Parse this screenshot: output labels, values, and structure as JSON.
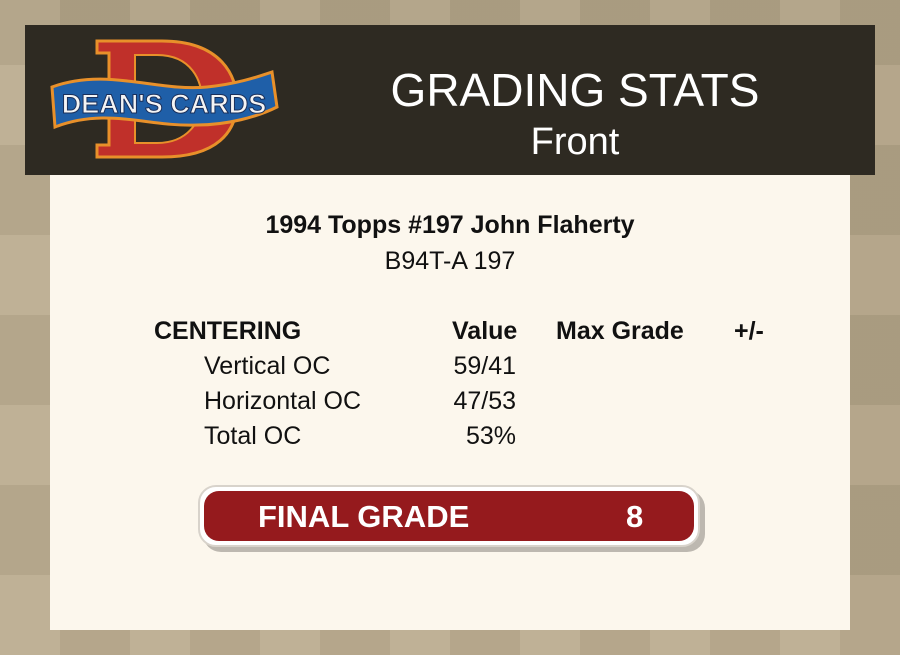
{
  "logo": {
    "text": "DEAN'S CARDS",
    "letter": "D"
  },
  "header": {
    "title": "GRADING STATS",
    "subtitle": "Front"
  },
  "card": {
    "name": "1994 Topps #197 John Flaherty",
    "code": "B94T-A 197"
  },
  "table": {
    "headers": [
      "CENTERING",
      "Value",
      "Max Grade",
      "+/-"
    ],
    "rows": [
      {
        "label": "Vertical OC",
        "value": "59/41"
      },
      {
        "label": "Horizontal OC",
        "value": "47/53"
      },
      {
        "label": "Total OC",
        "value": "53%"
      }
    ]
  },
  "final": {
    "label": "FINAL GRADE",
    "value": "8"
  },
  "colors": {
    "header_bg": "#2e2a22",
    "grade_red": "#951a1d",
    "card_bg": "#fcf7ed"
  }
}
